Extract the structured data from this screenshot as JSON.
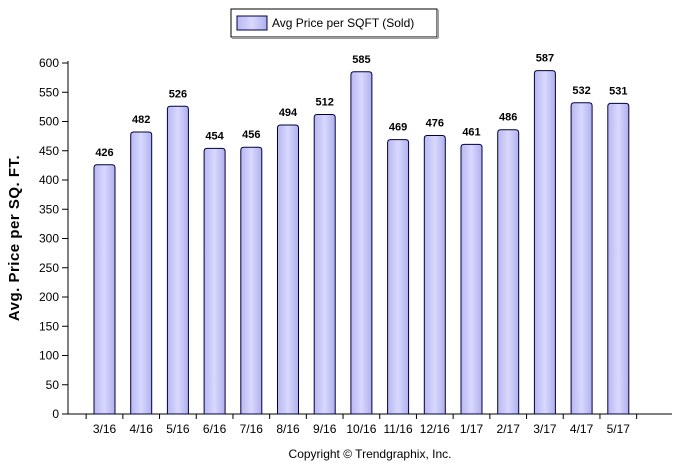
{
  "chart_data": {
    "type": "bar",
    "categories": [
      "3/16",
      "4/16",
      "5/16",
      "6/16",
      "7/16",
      "8/16",
      "9/16",
      "10/16",
      "11/16",
      "12/16",
      "1/17",
      "2/17",
      "3/17",
      "4/17",
      "5/17"
    ],
    "series": [
      {
        "name": "Avg Price per SQFT (Sold)",
        "values": [
          426,
          482,
          526,
          454,
          456,
          494,
          512,
          585,
          469,
          476,
          461,
          486,
          587,
          532,
          531
        ],
        "color": "#c8c8f8",
        "edge_color": "#000040"
      }
    ],
    "title": "",
    "xlabel": "",
    "ylabel": "Avg. Price per SQ. FT.",
    "ylim": [
      0,
      600
    ],
    "yticks": [
      0,
      50,
      100,
      150,
      200,
      250,
      300,
      350,
      400,
      450,
      500,
      550,
      600
    ],
    "grid": false,
    "legend": "top-center",
    "data_labels": true
  },
  "footer": {
    "copyright": "Copyright © Trendgraphix, Inc."
  }
}
